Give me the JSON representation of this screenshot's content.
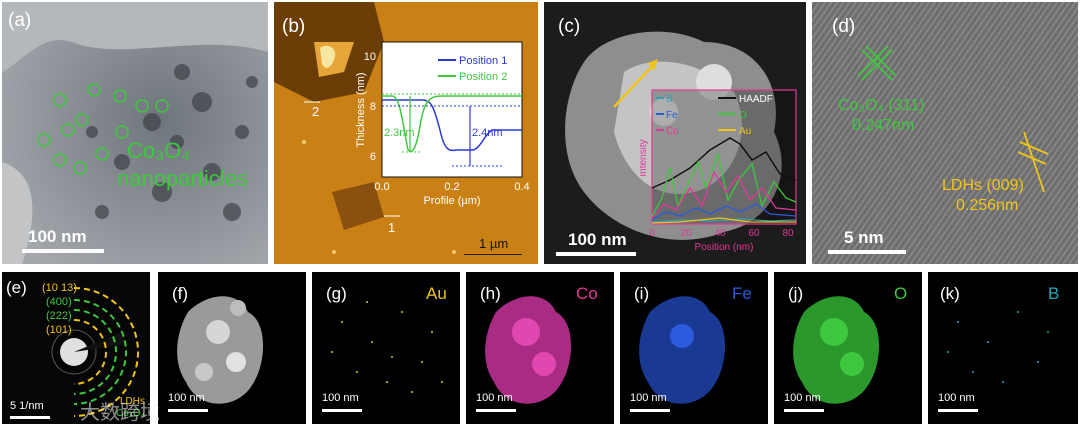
{
  "panels": {
    "a": {
      "label": "(a)",
      "annotation_line1": "Co₃O₄",
      "annotation_line2": "nanoparticles",
      "scale": "100 nm"
    },
    "b": {
      "label": "(b)",
      "marker1": "1",
      "marker2": "2",
      "scale": "1 µm",
      "inset": {
        "ylabel": "Thickness (nm)",
        "xlabel": "Profile (µm)",
        "yticks": [
          "6",
          "8",
          "10"
        ],
        "xticks": [
          "0.0",
          "0.2",
          "0.4"
        ],
        "legend": [
          "Position 1",
          "Position 2"
        ],
        "ann1": "2.3nm",
        "ann2": "2.4nm"
      }
    },
    "c": {
      "label": "(c)",
      "scale": "100 nm",
      "inset": {
        "ylabel": "Intensity",
        "xlabel": "Position (nm)",
        "xticks": [
          "0",
          "20",
          "40",
          "60",
          "80"
        ],
        "legend": [
          "B",
          "Fe",
          "Co",
          "HAADF",
          "O",
          "Au"
        ]
      }
    },
    "d": {
      "label": "(d)",
      "ann1_line1": "Co₃O₄ (311)",
      "ann1_line2": "0.247nm",
      "ann2_line1": "LDHs (009)",
      "ann2_line2": "0.256nm",
      "scale": "5 nm"
    },
    "e": {
      "label": "(e)",
      "rings": [
        "(10 13)",
        "(400)",
        "(222)",
        "(101)"
      ],
      "scale": "5 1/nm",
      "legend1": "LDHs",
      "legend2": "Co₃O₄"
    },
    "f": {
      "label": "(f)",
      "scale": "100 nm"
    },
    "g": {
      "label": "(g)",
      "element": "Au",
      "scale": "100 nm"
    },
    "h": {
      "label": "(h)",
      "element": "Co",
      "scale": "100 nm"
    },
    "i": {
      "label": "(i)",
      "element": "Fe",
      "scale": "100 nm"
    },
    "j": {
      "label": "(j)",
      "element": "O",
      "scale": "100 nm"
    },
    "k": {
      "label": "(k)",
      "element": "B",
      "scale": "100 nm"
    }
  },
  "watermark": "大数跨境",
  "colors": {
    "green": "#3ec83e",
    "yellow": "#f0c419",
    "magenta": "#e0389a",
    "blue": "#2a5bd7",
    "cyan": "#2aa3b6",
    "afm_bg": "#c47a12"
  }
}
